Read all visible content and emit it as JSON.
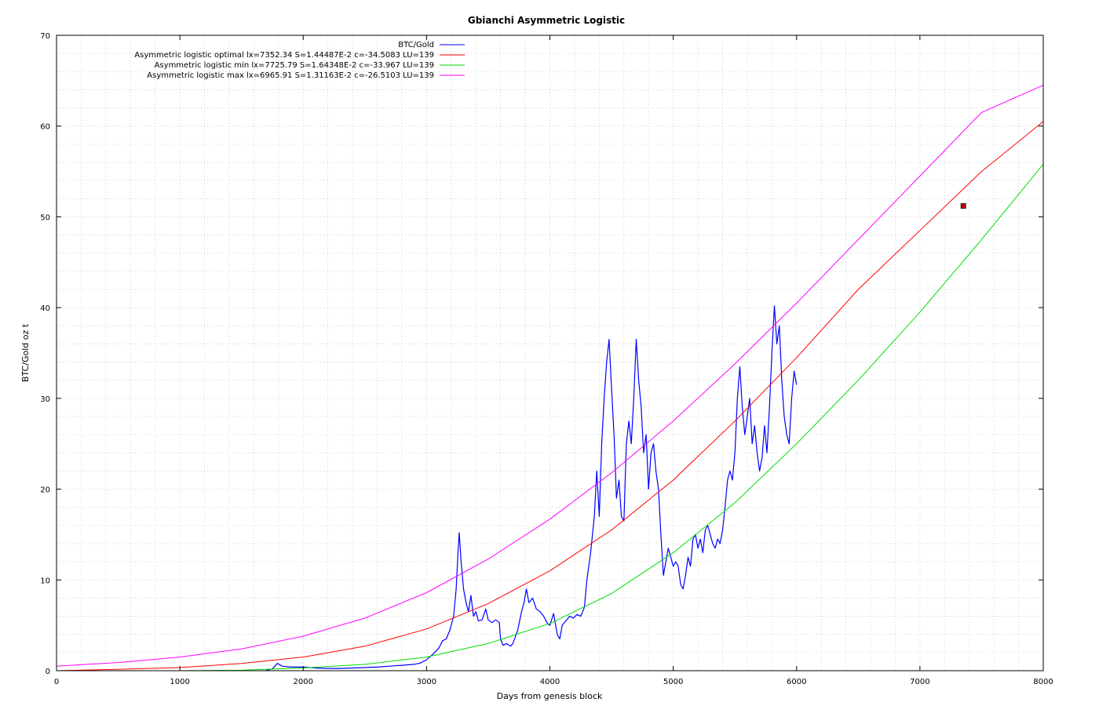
{
  "chart_data": {
    "type": "line",
    "title": "Gbianchi Asymmetric Logistic",
    "xlabel": "Days from genesis block",
    "ylabel": "BTC/Gold oz t",
    "xlim": [
      0,
      8000
    ],
    "ylim": [
      0,
      70
    ],
    "x_ticks": [
      0,
      1000,
      2000,
      3000,
      4000,
      5000,
      6000,
      7000,
      8000
    ],
    "y_ticks": [
      0,
      10,
      20,
      30,
      40,
      50,
      60,
      70
    ],
    "grid": true,
    "legend_position": "top-center",
    "series": [
      {
        "name": "BTC/Gold",
        "color": "#0000ff",
        "points": [
          [
            1700,
            0.05
          ],
          [
            1750,
            0.2
          ],
          [
            1790,
            0.8
          ],
          [
            1830,
            0.5
          ],
          [
            1900,
            0.4
          ],
          [
            2000,
            0.4
          ],
          [
            2100,
            0.3
          ],
          [
            2200,
            0.25
          ],
          [
            2300,
            0.25
          ],
          [
            2400,
            0.3
          ],
          [
            2500,
            0.35
          ],
          [
            2600,
            0.4
          ],
          [
            2700,
            0.5
          ],
          [
            2800,
            0.6
          ],
          [
            2900,
            0.7
          ],
          [
            2950,
            0.85
          ],
          [
            3000,
            1.2
          ],
          [
            3050,
            1.8
          ],
          [
            3100,
            2.5
          ],
          [
            3130,
            3.3
          ],
          [
            3160,
            3.5
          ],
          [
            3190,
            4.5
          ],
          [
            3220,
            6.0
          ],
          [
            3240,
            9.0
          ],
          [
            3255,
            13.0
          ],
          [
            3265,
            15.2
          ],
          [
            3280,
            12.0
          ],
          [
            3300,
            9.0
          ],
          [
            3320,
            7.5
          ],
          [
            3340,
            6.5
          ],
          [
            3360,
            8.3
          ],
          [
            3380,
            6.0
          ],
          [
            3400,
            6.5
          ],
          [
            3420,
            5.5
          ],
          [
            3450,
            5.6
          ],
          [
            3480,
            6.8
          ],
          [
            3500,
            5.6
          ],
          [
            3530,
            5.3
          ],
          [
            3560,
            5.6
          ],
          [
            3590,
            5.3
          ],
          [
            3600,
            3.5
          ],
          [
            3620,
            2.8
          ],
          [
            3650,
            3.0
          ],
          [
            3680,
            2.7
          ],
          [
            3700,
            3.0
          ],
          [
            3740,
            4.5
          ],
          [
            3770,
            6.5
          ],
          [
            3790,
            7.5
          ],
          [
            3810,
            9.0
          ],
          [
            3830,
            7.5
          ],
          [
            3860,
            8.0
          ],
          [
            3890,
            6.8
          ],
          [
            3920,
            6.5
          ],
          [
            3950,
            6.0
          ],
          [
            3980,
            5.2
          ],
          [
            4000,
            5.0
          ],
          [
            4030,
            6.3
          ],
          [
            4060,
            4.0
          ],
          [
            4080,
            3.5
          ],
          [
            4100,
            5.0
          ],
          [
            4130,
            5.5
          ],
          [
            4160,
            6.0
          ],
          [
            4190,
            5.8
          ],
          [
            4220,
            6.2
          ],
          [
            4250,
            6.0
          ],
          [
            4280,
            7.0
          ],
          [
            4300,
            10.0
          ],
          [
            4330,
            13.0
          ],
          [
            4360,
            17.0
          ],
          [
            4380,
            22.0
          ],
          [
            4400,
            17.0
          ],
          [
            4420,
            25.0
          ],
          [
            4440,
            30.0
          ],
          [
            4460,
            34.0
          ],
          [
            4480,
            36.5
          ],
          [
            4500,
            31.0
          ],
          [
            4520,
            26.0
          ],
          [
            4540,
            19.0
          ],
          [
            4560,
            21.0
          ],
          [
            4580,
            17.0
          ],
          [
            4600,
            16.5
          ],
          [
            4620,
            25.0
          ],
          [
            4640,
            27.5
          ],
          [
            4660,
            25.0
          ],
          [
            4680,
            30.0
          ],
          [
            4700,
            36.5
          ],
          [
            4720,
            32.0
          ],
          [
            4740,
            29.0
          ],
          [
            4760,
            24.0
          ],
          [
            4780,
            26.0
          ],
          [
            4800,
            20.0
          ],
          [
            4820,
            24.0
          ],
          [
            4840,
            25.0
          ],
          [
            4860,
            22.0
          ],
          [
            4880,
            20.0
          ],
          [
            4900,
            15.0
          ],
          [
            4920,
            10.5
          ],
          [
            4940,
            12.0
          ],
          [
            4960,
            13.5
          ],
          [
            4980,
            12.5
          ],
          [
            5000,
            11.5
          ],
          [
            5020,
            12.0
          ],
          [
            5040,
            11.5
          ],
          [
            5060,
            9.5
          ],
          [
            5080,
            9.0
          ],
          [
            5100,
            10.5
          ],
          [
            5120,
            12.5
          ],
          [
            5140,
            11.5
          ],
          [
            5160,
            14.5
          ],
          [
            5180,
            15.0
          ],
          [
            5200,
            13.5
          ],
          [
            5220,
            14.5
          ],
          [
            5240,
            13.0
          ],
          [
            5260,
            15.5
          ],
          [
            5280,
            16.0
          ],
          [
            5300,
            15.0
          ],
          [
            5320,
            14.0
          ],
          [
            5340,
            13.5
          ],
          [
            5360,
            14.5
          ],
          [
            5380,
            14.0
          ],
          [
            5400,
            15.5
          ],
          [
            5420,
            18.0
          ],
          [
            5440,
            21.0
          ],
          [
            5460,
            22.0
          ],
          [
            5480,
            21.0
          ],
          [
            5500,
            24.0
          ],
          [
            5520,
            30.0
          ],
          [
            5540,
            33.5
          ],
          [
            5560,
            29.0
          ],
          [
            5580,
            26.0
          ],
          [
            5600,
            28.0
          ],
          [
            5620,
            30.0
          ],
          [
            5640,
            25.0
          ],
          [
            5660,
            27.0
          ],
          [
            5680,
            24.0
          ],
          [
            5700,
            22.0
          ],
          [
            5720,
            23.5
          ],
          [
            5740,
            27.0
          ],
          [
            5760,
            24.0
          ],
          [
            5780,
            29.0
          ],
          [
            5800,
            35.0
          ],
          [
            5820,
            40.2
          ],
          [
            5840,
            36.0
          ],
          [
            5860,
            38.0
          ],
          [
            5880,
            32.0
          ],
          [
            5900,
            28.0
          ],
          [
            5920,
            26.0
          ],
          [
            5940,
            25.0
          ],
          [
            5960,
            30.0
          ],
          [
            5980,
            33.0
          ],
          [
            6000,
            31.5
          ]
        ]
      },
      {
        "name": "Asymmetric logistic optimal lx=7352.34 S=1.44487E-2 c=-34.5083 LU=139",
        "color": "#ff0000",
        "points": [
          [
            0,
            0.0
          ],
          [
            500,
            0.15
          ],
          [
            1000,
            0.35
          ],
          [
            1500,
            0.8
          ],
          [
            2000,
            1.5
          ],
          [
            2500,
            2.7
          ],
          [
            3000,
            4.6
          ],
          [
            3500,
            7.4
          ],
          [
            4000,
            11.0
          ],
          [
            4500,
            15.5
          ],
          [
            5000,
            21.0
          ],
          [
            5500,
            27.5
          ],
          [
            6000,
            34.5
          ],
          [
            6500,
            42.0
          ],
          [
            7000,
            48.5
          ],
          [
            7500,
            55.0
          ],
          [
            8000,
            60.5
          ]
        ]
      },
      {
        "name": "Asymmetric logistic min lx=7725.79 S=1.64348E-2 c=-33.967 LU=139",
        "color": "#00dd00",
        "points": [
          [
            1000,
            0.0
          ],
          [
            1500,
            0.05
          ],
          [
            2000,
            0.3
          ],
          [
            2500,
            0.7
          ],
          [
            3000,
            1.5
          ],
          [
            3500,
            3.0
          ],
          [
            4000,
            5.2
          ],
          [
            4500,
            8.5
          ],
          [
            5000,
            13.0
          ],
          [
            5500,
            18.5
          ],
          [
            6000,
            25.0
          ],
          [
            6500,
            32.0
          ],
          [
            7000,
            39.5
          ],
          [
            7500,
            47.5
          ],
          [
            8000,
            55.8
          ]
        ]
      },
      {
        "name": "Asymmetric logistic max lx=6965.91 S=1.31163E-2 c=-26.5103 LU=139",
        "color": "#ff00ff",
        "points": [
          [
            0,
            0.5
          ],
          [
            500,
            0.9
          ],
          [
            1000,
            1.5
          ],
          [
            1500,
            2.4
          ],
          [
            2000,
            3.8
          ],
          [
            2500,
            5.8
          ],
          [
            3000,
            8.6
          ],
          [
            3500,
            12.3
          ],
          [
            4000,
            16.7
          ],
          [
            4500,
            21.8
          ],
          [
            5000,
            27.5
          ],
          [
            5500,
            33.8
          ],
          [
            6000,
            40.5
          ],
          [
            6500,
            47.5
          ],
          [
            7000,
            54.5
          ],
          [
            7500,
            61.5
          ],
          [
            8000,
            64.5
          ]
        ]
      }
    ],
    "marker": {
      "x": 7352,
      "y": 51.2,
      "color": "#cc0000"
    }
  }
}
